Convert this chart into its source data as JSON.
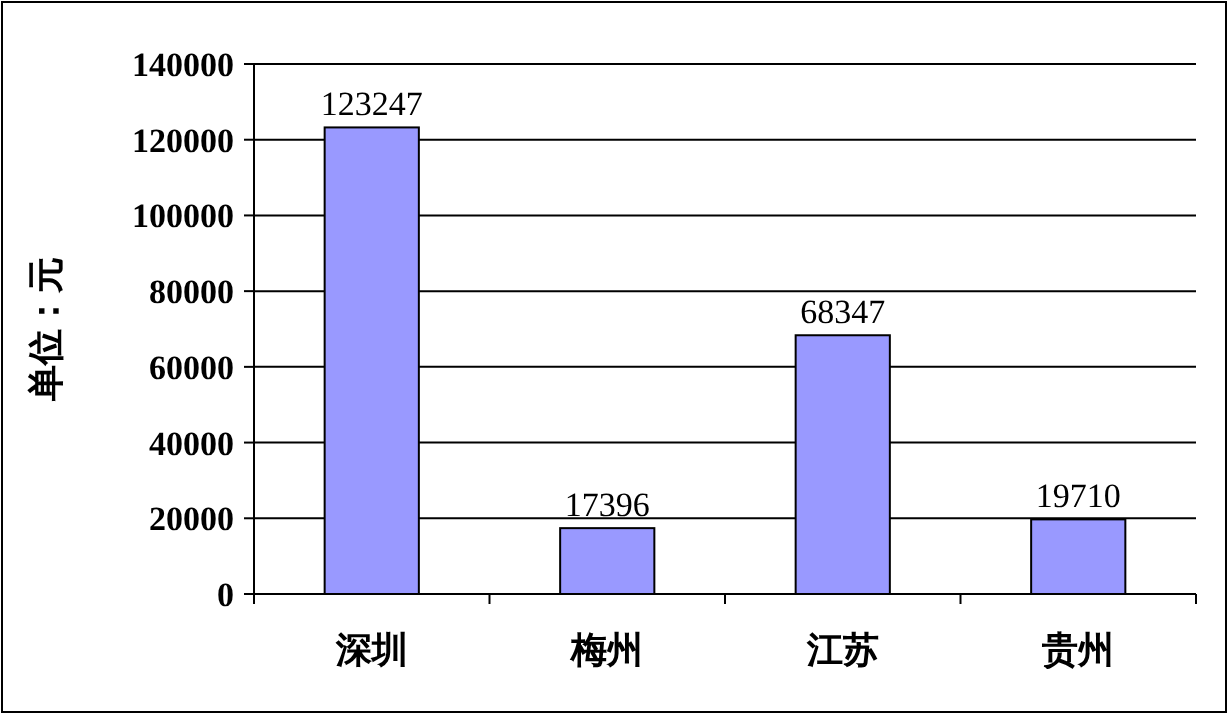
{
  "chart_data": {
    "type": "bar",
    "categories": [
      "深圳",
      "梅州",
      "江苏",
      "贵州"
    ],
    "values": [
      123247,
      17396,
      68347,
      19710
    ],
    "color": "#9999ff",
    "ylabel": "单位：元",
    "ylim": [
      0,
      140000
    ],
    "yticks": [
      0,
      20000,
      40000,
      60000,
      80000,
      100000,
      120000,
      140000
    ],
    "grid": "y",
    "data_labels": true
  }
}
